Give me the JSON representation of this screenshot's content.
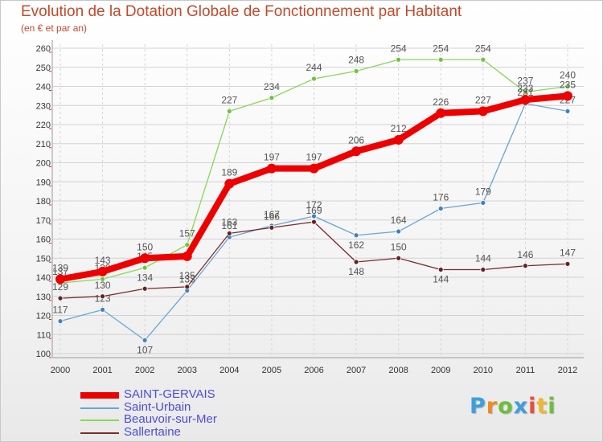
{
  "title": "Evolution de la Dotation Globale de Fonctionnement par Habitant",
  "subtitle": "(en € et par an)",
  "brand": {
    "text": "Proxiti",
    "colors": [
      "#3b9fe0",
      "#f08a24",
      "#6cbf3c",
      "#3b9fe0",
      "#e84c3d",
      "#f0b82a",
      "#6cbf3c"
    ]
  },
  "chart_data": {
    "type": "line",
    "title": "Evolution de la Dotation Globale de Fonctionnement par Habitant",
    "subtitle": "(en € et par an)",
    "xlabel": "",
    "ylabel": "",
    "ylim": [
      100,
      260
    ],
    "ytick_step": 10,
    "grid": true,
    "legend_position": "bottom-left",
    "categories": [
      "2000",
      "2001",
      "2002",
      "2003",
      "2004",
      "2005",
      "2006",
      "2007",
      "2008",
      "2009",
      "2010",
      "2011",
      "2012"
    ],
    "series": [
      {
        "name": "Beauvoir-sur-Mer",
        "color": "#8ad65a",
        "marker": "#6cc43c",
        "width": 1.3,
        "labelPos": "above",
        "values": [
          137,
          139,
          145,
          157,
          227,
          234,
          244,
          248,
          254,
          254,
          254,
          237,
          240
        ],
        "labels": [
          "137",
          "139",
          "145",
          "157",
          "227",
          "234",
          "244",
          "248",
          "254",
          "254",
          "254",
          "237",
          "240"
        ]
      },
      {
        "name": "Saint-Urbain",
        "color": "#6aa5d3",
        "marker": "#3d82c4",
        "width": 1.3,
        "labelPos": "mixed",
        "values": [
          117,
          123,
          107,
          133,
          161,
          167,
          172,
          162,
          164,
          176,
          179,
          231,
          227
        ],
        "labels": [
          "117",
          "123",
          "107",
          "133",
          "161",
          "167",
          "172",
          "162",
          "164",
          "176",
          "179",
          "231",
          "227"
        ]
      },
      {
        "name": "Sallertaine",
        "color": "#7a2a2a",
        "marker": "#6a2020",
        "width": 1.3,
        "labelPos": "mixed",
        "values": [
          129,
          130,
          134,
          135,
          163,
          166,
          169,
          148,
          150,
          144,
          144,
          146,
          147
        ],
        "labels": [
          "129",
          "130",
          "134",
          "135",
          "163",
          "166",
          "169",
          "148",
          "150",
          "144",
          "144",
          "146",
          "147"
        ]
      },
      {
        "name": "SAINT-GERVAIS",
        "color": "#ee0000",
        "marker": "#ee0000",
        "width": 8,
        "labelPos": "above",
        "values": [
          139,
          143,
          150,
          151,
          189,
          197,
          197,
          206,
          212,
          226,
          227,
          233,
          235
        ],
        "labels": [
          "139",
          "143",
          "150",
          "",
          "189",
          "197",
          "197",
          "206",
          "212",
          "226",
          "227",
          "233",
          "235"
        ]
      }
    ]
  },
  "legend": [
    {
      "name": "SAINT-GERVAIS",
      "color": "#ee0000",
      "thick": true
    },
    {
      "name": "Saint-Urbain",
      "color": "#6aa5d3",
      "thick": false
    },
    {
      "name": "Beauvoir-sur-Mer",
      "color": "#8ad65a",
      "thick": false
    },
    {
      "name": "Sallertaine",
      "color": "#7a2a2a",
      "thick": false
    }
  ]
}
